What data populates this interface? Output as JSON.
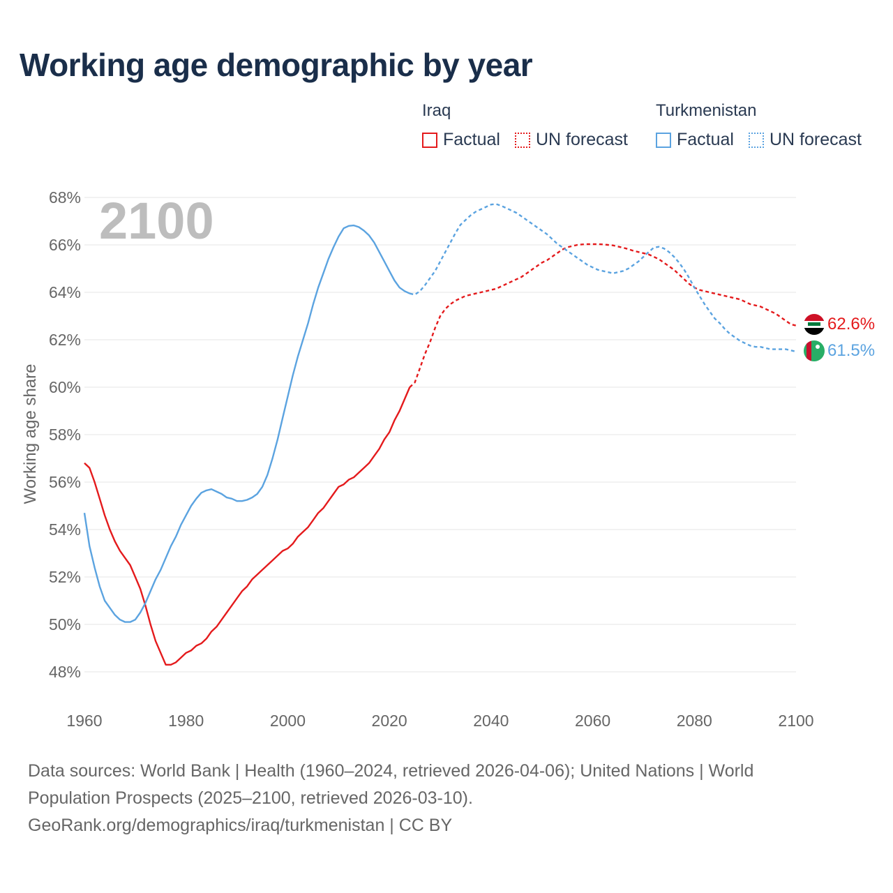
{
  "title": "Working age demographic by year",
  "legend": {
    "groups": [
      {
        "name": "Iraq",
        "color": "#e41a1c",
        "factual_label": "Factual",
        "forecast_label": "UN forecast"
      },
      {
        "name": "Turkmenistan",
        "color": "#5ba3e0",
        "factual_label": "Factual",
        "forecast_label": "UN forecast"
      }
    ]
  },
  "footer": {
    "line1": "Data sources: World Bank | Health (1960–2024, retrieved 2026-04-06); United Nations | World",
    "line2": "Population Prospects (2025–2100, retrieved 2026-03-10).",
    "line3": "GeoRank.org/demographics/iraq/turkmenistan | CC BY"
  },
  "chart_data": {
    "type": "line",
    "title": "Working age demographic by year",
    "current_year_label": "2100",
    "xlabel": "",
    "ylabel": "Working age share",
    "xlim": [
      1960,
      2100
    ],
    "ylim": [
      47.5,
      68.5
    ],
    "x_ticks": [
      1960,
      1980,
      2000,
      2020,
      2040,
      2060,
      2080,
      2100
    ],
    "y_ticks": [
      48,
      50,
      52,
      54,
      56,
      58,
      60,
      62,
      64,
      66,
      68
    ],
    "y_tick_suffix": "%",
    "grid": true,
    "factual_end_year": 2024,
    "series": [
      {
        "name": "Iraq",
        "color": "#e41a1c",
        "end_label": "62.6%",
        "flag": "iraq-flag",
        "points": [
          [
            1960,
            56.8
          ],
          [
            1961,
            56.6
          ],
          [
            1962,
            56.0
          ],
          [
            1963,
            55.3
          ],
          [
            1964,
            54.6
          ],
          [
            1965,
            54.0
          ],
          [
            1966,
            53.5
          ],
          [
            1967,
            53.1
          ],
          [
            1968,
            52.8
          ],
          [
            1969,
            52.5
          ],
          [
            1970,
            52.0
          ],
          [
            1971,
            51.5
          ],
          [
            1972,
            50.8
          ],
          [
            1973,
            50.0
          ],
          [
            1974,
            49.3
          ],
          [
            1975,
            48.8
          ],
          [
            1976,
            48.3
          ],
          [
            1977,
            48.3
          ],
          [
            1978,
            48.4
          ],
          [
            1979,
            48.6
          ],
          [
            1980,
            48.8
          ],
          [
            1981,
            48.9
          ],
          [
            1982,
            49.1
          ],
          [
            1983,
            49.2
          ],
          [
            1984,
            49.4
          ],
          [
            1985,
            49.7
          ],
          [
            1986,
            49.9
          ],
          [
            1987,
            50.2
          ],
          [
            1988,
            50.5
          ],
          [
            1989,
            50.8
          ],
          [
            1990,
            51.1
          ],
          [
            1991,
            51.4
          ],
          [
            1992,
            51.6
          ],
          [
            1993,
            51.9
          ],
          [
            1994,
            52.1
          ],
          [
            1995,
            52.3
          ],
          [
            1996,
            52.5
          ],
          [
            1997,
            52.7
          ],
          [
            1998,
            52.9
          ],
          [
            1999,
            53.1
          ],
          [
            2000,
            53.2
          ],
          [
            2001,
            53.4
          ],
          [
            2002,
            53.7
          ],
          [
            2003,
            53.9
          ],
          [
            2004,
            54.1
          ],
          [
            2005,
            54.4
          ],
          [
            2006,
            54.7
          ],
          [
            2007,
            54.9
          ],
          [
            2008,
            55.2
          ],
          [
            2009,
            55.5
          ],
          [
            2010,
            55.8
          ],
          [
            2011,
            55.9
          ],
          [
            2012,
            56.1
          ],
          [
            2013,
            56.2
          ],
          [
            2014,
            56.4
          ],
          [
            2015,
            56.6
          ],
          [
            2016,
            56.8
          ],
          [
            2017,
            57.1
          ],
          [
            2018,
            57.4
          ],
          [
            2019,
            57.8
          ],
          [
            2020,
            58.1
          ],
          [
            2021,
            58.6
          ],
          [
            2022,
            59.0
          ],
          [
            2023,
            59.5
          ],
          [
            2024,
            60.0
          ],
          [
            2025,
            60.2
          ],
          [
            2026,
            60.8
          ],
          [
            2027,
            61.4
          ],
          [
            2028,
            61.9
          ],
          [
            2029,
            62.5
          ],
          [
            2030,
            63.0
          ],
          [
            2031,
            63.3
          ],
          [
            2032,
            63.5
          ],
          [
            2033,
            63.65
          ],
          [
            2034,
            63.75
          ],
          [
            2035,
            63.85
          ],
          [
            2036,
            63.9
          ],
          [
            2037,
            63.95
          ],
          [
            2038,
            64.0
          ],
          [
            2039,
            64.05
          ],
          [
            2040,
            64.1
          ],
          [
            2041,
            64.15
          ],
          [
            2042,
            64.25
          ],
          [
            2043,
            64.35
          ],
          [
            2044,
            64.45
          ],
          [
            2045,
            64.55
          ],
          [
            2046,
            64.65
          ],
          [
            2047,
            64.8
          ],
          [
            2048,
            64.95
          ],
          [
            2049,
            65.1
          ],
          [
            2050,
            65.25
          ],
          [
            2051,
            65.35
          ],
          [
            2052,
            65.5
          ],
          [
            2053,
            65.65
          ],
          [
            2054,
            65.8
          ],
          [
            2055,
            65.9
          ],
          [
            2056,
            65.95
          ],
          [
            2057,
            66.0
          ],
          [
            2058,
            66.02
          ],
          [
            2059,
            66.03
          ],
          [
            2060,
            66.03
          ],
          [
            2061,
            66.03
          ],
          [
            2062,
            66.02
          ],
          [
            2063,
            66.0
          ],
          [
            2064,
            65.98
          ],
          [
            2065,
            65.93
          ],
          [
            2066,
            65.88
          ],
          [
            2067,
            65.82
          ],
          [
            2068,
            65.75
          ],
          [
            2069,
            65.7
          ],
          [
            2070,
            65.65
          ],
          [
            2071,
            65.6
          ],
          [
            2072,
            65.5
          ],
          [
            2073,
            65.4
          ],
          [
            2074,
            65.25
          ],
          [
            2075,
            65.1
          ],
          [
            2076,
            64.95
          ],
          [
            2077,
            64.75
          ],
          [
            2078,
            64.55
          ],
          [
            2079,
            64.35
          ],
          [
            2080,
            64.2
          ],
          [
            2081,
            64.1
          ],
          [
            2082,
            64.05
          ],
          [
            2083,
            64.0
          ],
          [
            2084,
            63.95
          ],
          [
            2085,
            63.9
          ],
          [
            2086,
            63.85
          ],
          [
            2087,
            63.8
          ],
          [
            2088,
            63.75
          ],
          [
            2089,
            63.7
          ],
          [
            2090,
            63.6
          ],
          [
            2091,
            63.5
          ],
          [
            2092,
            63.45
          ],
          [
            2093,
            63.4
          ],
          [
            2094,
            63.3
          ],
          [
            2095,
            63.2
          ],
          [
            2096,
            63.1
          ],
          [
            2097,
            62.95
          ],
          [
            2098,
            62.8
          ],
          [
            2099,
            62.65
          ],
          [
            2100,
            62.6
          ]
        ]
      },
      {
        "name": "Turkmenistan",
        "color": "#5ba3e0",
        "end_label": "61.5%",
        "flag": "turkmenistan-flag",
        "points": [
          [
            1960,
            54.7
          ],
          [
            1961,
            53.3
          ],
          [
            1962,
            52.4
          ],
          [
            1963,
            51.6
          ],
          [
            1964,
            51.0
          ],
          [
            1965,
            50.7
          ],
          [
            1966,
            50.4
          ],
          [
            1967,
            50.2
          ],
          [
            1968,
            50.1
          ],
          [
            1969,
            50.1
          ],
          [
            1970,
            50.2
          ],
          [
            1971,
            50.5
          ],
          [
            1972,
            50.9
          ],
          [
            1973,
            51.4
          ],
          [
            1974,
            51.9
          ],
          [
            1975,
            52.3
          ],
          [
            1976,
            52.8
          ],
          [
            1977,
            53.3
          ],
          [
            1978,
            53.7
          ],
          [
            1979,
            54.2
          ],
          [
            1980,
            54.6
          ],
          [
            1981,
            55.0
          ],
          [
            1982,
            55.3
          ],
          [
            1983,
            55.55
          ],
          [
            1984,
            55.65
          ],
          [
            1985,
            55.7
          ],
          [
            1986,
            55.6
          ],
          [
            1987,
            55.5
          ],
          [
            1988,
            55.35
          ],
          [
            1989,
            55.3
          ],
          [
            1990,
            55.2
          ],
          [
            1991,
            55.2
          ],
          [
            1992,
            55.25
          ],
          [
            1993,
            55.35
          ],
          [
            1994,
            55.5
          ],
          [
            1995,
            55.8
          ],
          [
            1996,
            56.3
          ],
          [
            1997,
            57.0
          ],
          [
            1998,
            57.8
          ],
          [
            1999,
            58.7
          ],
          [
            2000,
            59.6
          ],
          [
            2001,
            60.5
          ],
          [
            2002,
            61.3
          ],
          [
            2003,
            62.0
          ],
          [
            2004,
            62.7
          ],
          [
            2005,
            63.5
          ],
          [
            2006,
            64.2
          ],
          [
            2007,
            64.8
          ],
          [
            2008,
            65.4
          ],
          [
            2009,
            65.9
          ],
          [
            2010,
            66.35
          ],
          [
            2011,
            66.7
          ],
          [
            2012,
            66.8
          ],
          [
            2013,
            66.82
          ],
          [
            2014,
            66.75
          ],
          [
            2015,
            66.6
          ],
          [
            2016,
            66.4
          ],
          [
            2017,
            66.1
          ],
          [
            2018,
            65.7
          ],
          [
            2019,
            65.3
          ],
          [
            2020,
            64.9
          ],
          [
            2021,
            64.5
          ],
          [
            2022,
            64.2
          ],
          [
            2023,
            64.05
          ],
          [
            2024,
            63.95
          ],
          [
            2025,
            63.9
          ],
          [
            2026,
            64.05
          ],
          [
            2027,
            64.3
          ],
          [
            2028,
            64.6
          ],
          [
            2029,
            64.9
          ],
          [
            2030,
            65.3
          ],
          [
            2031,
            65.7
          ],
          [
            2032,
            66.1
          ],
          [
            2033,
            66.5
          ],
          [
            2034,
            66.85
          ],
          [
            2035,
            67.05
          ],
          [
            2036,
            67.25
          ],
          [
            2037,
            67.4
          ],
          [
            2038,
            67.5
          ],
          [
            2039,
            67.6
          ],
          [
            2040,
            67.7
          ],
          [
            2041,
            67.72
          ],
          [
            2042,
            67.65
          ],
          [
            2043,
            67.55
          ],
          [
            2044,
            67.45
          ],
          [
            2045,
            67.35
          ],
          [
            2046,
            67.2
          ],
          [
            2047,
            67.05
          ],
          [
            2048,
            66.9
          ],
          [
            2049,
            66.75
          ],
          [
            2050,
            66.6
          ],
          [
            2051,
            66.45
          ],
          [
            2052,
            66.25
          ],
          [
            2053,
            66.05
          ],
          [
            2054,
            65.9
          ],
          [
            2055,
            65.75
          ],
          [
            2056,
            65.6
          ],
          [
            2057,
            65.45
          ],
          [
            2058,
            65.3
          ],
          [
            2059,
            65.15
          ],
          [
            2060,
            65.05
          ],
          [
            2061,
            64.95
          ],
          [
            2062,
            64.9
          ],
          [
            2063,
            64.85
          ],
          [
            2064,
            64.8
          ],
          [
            2065,
            64.85
          ],
          [
            2066,
            64.9
          ],
          [
            2067,
            65.0
          ],
          [
            2068,
            65.15
          ],
          [
            2069,
            65.3
          ],
          [
            2070,
            65.5
          ],
          [
            2071,
            65.7
          ],
          [
            2072,
            65.88
          ],
          [
            2073,
            65.92
          ],
          [
            2074,
            65.85
          ],
          [
            2075,
            65.7
          ],
          [
            2076,
            65.5
          ],
          [
            2077,
            65.25
          ],
          [
            2078,
            64.95
          ],
          [
            2079,
            64.6
          ],
          [
            2080,
            64.2
          ],
          [
            2081,
            63.85
          ],
          [
            2082,
            63.5
          ],
          [
            2083,
            63.2
          ],
          [
            2084,
            62.9
          ],
          [
            2085,
            62.7
          ],
          [
            2086,
            62.45
          ],
          [
            2087,
            62.25
          ],
          [
            2088,
            62.1
          ],
          [
            2089,
            61.95
          ],
          [
            2090,
            61.85
          ],
          [
            2091,
            61.75
          ],
          [
            2092,
            61.7
          ],
          [
            2093,
            61.7
          ],
          [
            2094,
            61.65
          ],
          [
            2095,
            61.6
          ],
          [
            2096,
            61.6
          ],
          [
            2097,
            61.6
          ],
          [
            2098,
            61.6
          ],
          [
            2099,
            61.55
          ],
          [
            2100,
            61.5
          ]
        ]
      }
    ]
  }
}
